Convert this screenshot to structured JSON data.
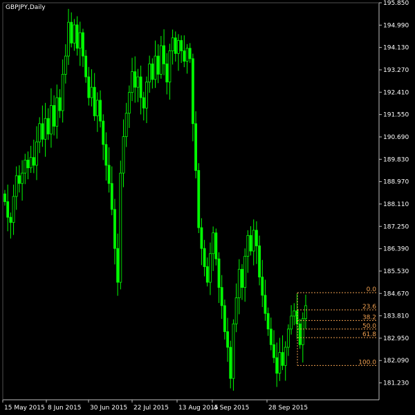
{
  "chart_title": "GBPJPY,Daily",
  "colors": {
    "background": "#000000",
    "axis": "#c0c0c0",
    "text": "#ffffff",
    "candle": "#00ff00",
    "fibonacci": "#f0a050"
  },
  "chart_data": {
    "type": "candlestick",
    "symbol": "GBPJPY",
    "timeframe": "Daily",
    "grid": false,
    "ylim": [
      180.58,
      195.85
    ],
    "y_ticks": [
      "195.850",
      "194.990",
      "194.130",
      "193.270",
      "192.410",
      "191.550",
      "190.690",
      "189.830",
      "188.970",
      "188.110",
      "187.250",
      "186.390",
      "185.530",
      "184.670",
      "183.810",
      "182.950",
      "182.090",
      "181.230"
    ],
    "x_ticks": [
      "15 May 2015",
      "8 Jun 2015",
      "30 Jun 2015",
      "22 Jul 2015",
      "13 Aug 2015",
      "4 Sep 2015",
      "28 Sep 2015"
    ],
    "closes": [
      188.2,
      187.6,
      187.4,
      188.4,
      189.2,
      188.9,
      189.3,
      189.8,
      189.5,
      189.9,
      189.6,
      190.5,
      191.2,
      190.6,
      191.4,
      190.8,
      191.9,
      191.1,
      192.2,
      191.7,
      193.1,
      193.8,
      195.1,
      194.3,
      195.0,
      194.1,
      194.7,
      193.8,
      193.0,
      192.2,
      192.6,
      191.5,
      192.1,
      191.3,
      190.4,
      189.6,
      188.9,
      187.9,
      186.4,
      185.1,
      189.3,
      190.7,
      191.6,
      192.4,
      193.2,
      192.6,
      193.0,
      192.2,
      191.8,
      192.8,
      193.5,
      192.9,
      193.8,
      193.1,
      194.2,
      193.5,
      192.8,
      194.0,
      194.5,
      193.9,
      194.4,
      194.0,
      193.6,
      194.1,
      193.7,
      191.2,
      189.4,
      187.2,
      186.4,
      185.7,
      185.1,
      186.2,
      187.0,
      186.0,
      184.9,
      184.2,
      183.2,
      182.6,
      181.4,
      183.5,
      184.5,
      185.6,
      184.9,
      186.1,
      186.9,
      186.3,
      187.1,
      186.5,
      185.3,
      184.6,
      183.9,
      183.3,
      182.7,
      182.2,
      181.6,
      182.4,
      181.9,
      182.6,
      183.3,
      183.8,
      184.0,
      183.5,
      182.7,
      183.7,
      184.2
    ]
  },
  "fibonacci": {
    "levels": [
      {
        "label": "0.0",
        "ratio": 0.0
      },
      {
        "label": "23.6",
        "ratio": 0.236
      },
      {
        "label": "38.2",
        "ratio": 0.382
      },
      {
        "label": "50.0",
        "ratio": 0.5
      },
      {
        "label": "61.8",
        "ratio": 0.618
      },
      {
        "label": "100.0",
        "ratio": 1.0
      }
    ],
    "high": 184.7,
    "low": 181.9
  }
}
